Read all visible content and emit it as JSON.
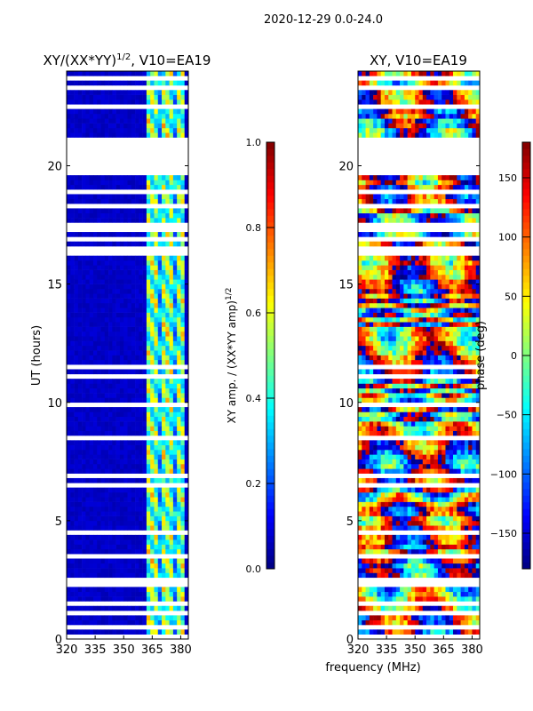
{
  "chart_data": [
    {
      "type": "heatmap",
      "suptitle": "2020-12-29 0.0-24.0",
      "title": "XY/(XX*YY)",
      "title_sup": "1/2",
      "title_suffix": ", V10=EA19",
      "ylabel": "UT (hours)",
      "xlabel": "",
      "xlim": [
        320,
        384
      ],
      "ylim": [
        0,
        24
      ],
      "xticks": [
        320,
        335,
        350,
        365,
        380
      ],
      "yticks": [
        0,
        5,
        10,
        15,
        20
      ],
      "colormap": "jet",
      "colorbar": {
        "label": "XY amp. / (XX*YY amp)",
        "label_sup": "1/2",
        "range": [
          0,
          1
        ],
        "ticks": [
          "0.0",
          "0.2",
          "0.4",
          "0.6",
          "0.8",
          "1.0"
        ],
        "tick_values": [
          0,
          0.2,
          0.4,
          0.6,
          0.8,
          1.0
        ]
      },
      "background_level": 0.05,
      "signal_band_mhz": [
        362,
        382
      ],
      "signal_level_range": [
        0.3,
        0.75
      ]
    },
    {
      "type": "heatmap",
      "title": "XY, V10=EA19",
      "xlabel": "frequency (MHz)",
      "xlim": [
        320,
        384
      ],
      "ylim": [
        0,
        24
      ],
      "xticks": [
        320,
        335,
        350,
        365,
        380
      ],
      "yticks": [
        0,
        5,
        10,
        15,
        20
      ],
      "colormap": "jet",
      "colorbar": {
        "label": "phase (deg)",
        "range": [
          -180,
          180
        ],
        "ticks": [
          "−150",
          "−100",
          "−50",
          "0",
          "50",
          "100",
          "150"
        ],
        "tick_values": [
          -150,
          -100,
          -50,
          0,
          50,
          100,
          150
        ]
      }
    }
  ],
  "flagged_ut_ranges_hours": [
    [
      19.6,
      20.8
    ],
    [
      16.2,
      16.55
    ],
    [
      11.48,
      11.67
    ],
    [
      6.45,
      6.6
    ],
    [
      2.3,
      2.5
    ],
    [
      1.45,
      1.55
    ],
    [
      1.05,
      1.12
    ],
    [
      0.45,
      0.55
    ],
    [
      22.35,
      22.5
    ],
    [
      23.55,
      23.65
    ]
  ]
}
